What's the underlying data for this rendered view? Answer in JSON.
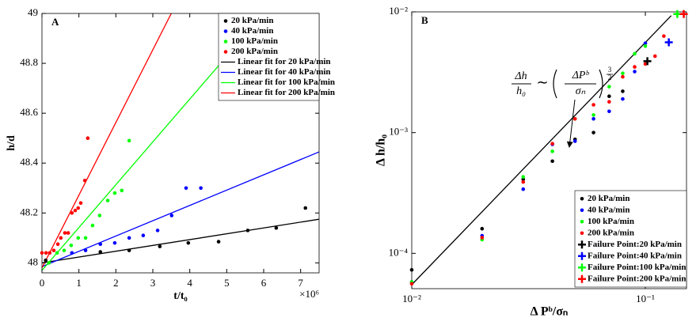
{
  "chart_data": [
    {
      "type": "scatter",
      "panel_label": "A",
      "xlabel": "t/t₀",
      "x_multiplier": "×10⁶",
      "ylabel": "h/d",
      "xlim": [
        0,
        7.5
      ],
      "ylim": [
        47.96,
        49
      ],
      "xticks": [
        0,
        1,
        2,
        3,
        4,
        5,
        6,
        7
      ],
      "yticks": [
        48,
        48.2,
        48.4,
        48.6,
        48.8,
        49
      ],
      "legend": "upper right",
      "series": [
        {
          "name": "20 kPa/min",
          "color": "#000000",
          "x": [
            0.1,
            1.58,
            2.36,
            3.19,
            3.96,
            4.78,
            5.57,
            6.34,
            7.13
          ],
          "values": [
            48.01,
            48.044,
            48.05,
            48.066,
            48.08,
            48.085,
            48.13,
            48.14,
            48.22
          ]
        },
        {
          "name": "40 kPa/min",
          "color": "#0000ff",
          "x": [
            0.81,
            1.18,
            1.58,
            1.97,
            2.36,
            2.74,
            3.13,
            3.51,
            3.9,
            4.3
          ],
          "values": [
            48.04,
            48.05,
            48.075,
            48.08,
            48.1,
            48.11,
            48.13,
            48.19,
            48.3,
            48.3
          ]
        },
        {
          "name": "100 kPa/min",
          "color": "#00ff00",
          "x": [
            0.19,
            0.41,
            0.6,
            0.79,
            0.98,
            1.18,
            1.37,
            1.56,
            1.78,
            1.97,
            2.16,
            2.36
          ],
          "values": [
            48.0,
            48.04,
            48.05,
            48.07,
            48.1,
            48.1,
            48.15,
            48.19,
            48.25,
            48.28,
            48.29,
            48.49
          ]
        },
        {
          "name": "200 kPa/min",
          "color": "#ff0000",
          "x": [
            0,
            0.11,
            0.21,
            0.32,
            0.43,
            0.51,
            0.62,
            0.71,
            0.81,
            0.9,
            0.98,
            1.05,
            1.16,
            1.24
          ],
          "values": [
            48.04,
            48.04,
            48.04,
            48.05,
            48.075,
            48.1,
            48.12,
            48.12,
            48.2,
            48.21,
            48.22,
            48.24,
            48.33,
            48.5
          ]
        }
      ],
      "fits": [
        {
          "name": "Linear fit for 20 kPa/min",
          "color": "#000000",
          "x": [
            0,
            7.5
          ],
          "values": [
            48.0,
            48.175
          ]
        },
        {
          "name": "Linear fit for 40 kPa/min",
          "color": "#0000ff",
          "x": [
            0,
            7.5
          ],
          "values": [
            47.985,
            48.445
          ]
        },
        {
          "name": "Linear fit for 100 kPa/min",
          "color": "#00ff00",
          "x": [
            0,
            6
          ],
          "values": [
            47.97,
            49.0
          ]
        },
        {
          "name": "Linear fit for 200 kPa/min",
          "color": "#ff0000",
          "x": [
            0,
            3.5
          ],
          "values": [
            47.98,
            49.0
          ]
        }
      ]
    },
    {
      "type": "scatter",
      "panel_label": "B",
      "xlabel": "Δ Pᵇ/σₙ",
      "ylabel": "Δ h/h₀",
      "xscale": "log",
      "yscale": "log",
      "xlim": [
        0.01,
        0.15
      ],
      "ylim": [
        5.1e-05,
        0.01
      ],
      "xticks": [
        {
          "value": 0.01,
          "label": "10⁻²"
        },
        {
          "value": 0.1,
          "label": "10⁻¹"
        }
      ],
      "yticks": [
        {
          "value": 0.0001,
          "label": "10⁻⁴"
        },
        {
          "value": 0.001,
          "label": "10⁻³"
        },
        {
          "value": 0.01,
          "label": "10⁻²"
        }
      ],
      "legend": "lower right",
      "series": [
        {
          "name": "20 kPa/min",
          "color": "#000000",
          "x": [
            0.01,
            0.02,
            0.03,
            0.04,
            0.05,
            0.06,
            0.07,
            0.08
          ],
          "values": [
            7.3e-05,
            0.00016,
            0.00041,
            0.00058,
            0.00088,
            0.001,
            0.002,
            0.0022
          ]
        },
        {
          "name": "40 kPa/min",
          "color": "#0000ff",
          "x": [
            0.01,
            0.02,
            0.03,
            0.04,
            0.05,
            0.06,
            0.07,
            0.08,
            0.09,
            0.1
          ],
          "values": [
            5.8e-05,
            0.00014,
            0.00034,
            0.0008,
            0.00085,
            0.0013,
            0.0015,
            0.0019,
            0.0032,
            0.0055
          ]
        },
        {
          "name": "100 kPa/min",
          "color": "#00ff00",
          "x": [
            0.01,
            0.02,
            0.03,
            0.04,
            0.05,
            0.06,
            0.07,
            0.08,
            0.09,
            0.1
          ],
          "values": [
            5.8e-05,
            0.00013,
            0.00043,
            0.0007,
            0.0013,
            0.0014,
            0.0024,
            0.0031,
            0.0045,
            0.0052
          ]
        },
        {
          "name": "200 kPa/min",
          "color": "#ff0000",
          "x": [
            0.01,
            0.02,
            0.03,
            0.04,
            0.05,
            0.06,
            0.07,
            0.08,
            0.09,
            0.1,
            0.11,
            0.12
          ],
          "values": [
            5.6e-05,
            0.000135,
            0.00039,
            0.00081,
            0.0013,
            0.0017,
            0.0018,
            0.0029,
            0.0035,
            0.0037,
            0.0043,
            0.0063
          ]
        }
      ],
      "failure_points": [
        {
          "name": "Failure Point:20 kPa/min",
          "color": "#000000",
          "x": [
            0.102
          ],
          "values": [
            0.0039
          ]
        },
        {
          "name": "Failure Point:40 kPa/min",
          "color": "#0000ff",
          "x": [
            0.126
          ],
          "values": [
            0.0056
          ]
        },
        {
          "name": "Failure Point:100 kPa/min",
          "color": "#00ff00",
          "x": [
            0.137
          ],
          "values": [
            0.0096
          ]
        },
        {
          "name": "Failure Point:200 kPa/min",
          "color": "#ff0000",
          "x": [
            0.146
          ],
          "values": [
            0.0096
          ]
        }
      ],
      "fit_line": {
        "color": "#000000",
        "x": [
          0.01,
          0.129
        ],
        "values": [
          5.5e-05,
          0.0093
        ]
      },
      "annotation": {
        "lhs_numerator": "Δh",
        "lhs_denominator": "h₀",
        "relation": "∼",
        "rhs_numerator": "ΔPᵇ",
        "rhs_denominator": "σₙ",
        "exponent_numerator": "3",
        "exponent_denominator": "2"
      }
    }
  ]
}
